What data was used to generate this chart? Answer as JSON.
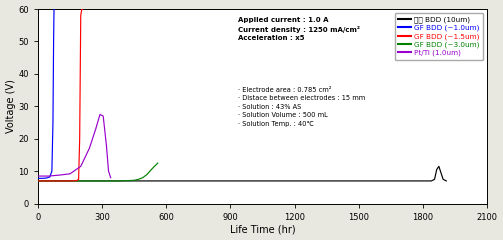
{
  "xlabel": "Life Time (hr)",
  "ylabel": "Voltage (V)",
  "xlim": [
    0,
    2100
  ],
  "ylim": [
    0,
    60
  ],
  "xticks": [
    0,
    300,
    600,
    900,
    1200,
    1500,
    1800,
    2100
  ],
  "yticks": [
    0,
    10,
    20,
    30,
    40,
    50,
    60
  ],
  "legend_entries": [
    {
      "label": "외산 BDD (10um)",
      "color": "#000000"
    },
    {
      "label": "GF BDD (~1.0um)",
      "color": "#0000FF"
    },
    {
      "label": "GF BDD (~1.5um)",
      "color": "#FF0000"
    },
    {
      "label": "GF BDD (~3.0um)",
      "color": "#008000"
    },
    {
      "label": "Pt/Ti (1.0um)",
      "color": "#9900CC"
    }
  ],
  "annotation_bold": [
    "Applied current : 1.0 A",
    "Current density : 1250 mA/cm²",
    "Acceleration : x5"
  ],
  "annotation_normal": [
    "· Electrode area : 0.785 cm²",
    "· Distace between electrodes : 15 mm",
    "· Solution : 43% AS",
    "· Solution Volume : 500 mL",
    "· Solution Temp. : 40℃"
  ],
  "bg_color": "#e8e8e0",
  "plot_bg_color": "#ffffff",
  "series": {
    "black": {
      "t": [
        0,
        1840,
        1855,
        1865,
        1875,
        1885,
        1895,
        1910
      ],
      "v": [
        7.0,
        7.0,
        7.5,
        10.5,
        11.5,
        9.5,
        7.5,
        7.0
      ]
    },
    "blue": {
      "t": [
        0,
        20,
        40,
        55,
        65,
        70,
        73,
        75,
        76
      ],
      "v": [
        7.8,
        7.8,
        7.9,
        8.2,
        10.0,
        25.0,
        50.0,
        60.0,
        60.0
      ]
    },
    "red": {
      "t": [
        0,
        50,
        100,
        150,
        180,
        190,
        195,
        200,
        205,
        210
      ],
      "v": [
        7.0,
        7.0,
        7.0,
        7.0,
        7.1,
        7.5,
        20.0,
        58.0,
        60.0,
        60.0
      ]
    },
    "green": {
      "t": [
        0,
        100,
        200,
        300,
        380,
        420,
        450,
        470,
        490,
        510,
        530,
        545,
        560
      ],
      "v": [
        7.0,
        7.0,
        7.0,
        7.0,
        7.0,
        7.1,
        7.2,
        7.5,
        8.0,
        9.0,
        10.5,
        11.5,
        12.5
      ]
    },
    "purple": {
      "t": [
        0,
        20,
        50,
        100,
        150,
        200,
        240,
        270,
        290,
        305,
        320,
        330,
        340
      ],
      "v": [
        8.5,
        8.5,
        8.5,
        8.8,
        9.2,
        11.5,
        17.0,
        23.0,
        27.5,
        27.0,
        18.0,
        10.0,
        8.0
      ]
    }
  }
}
